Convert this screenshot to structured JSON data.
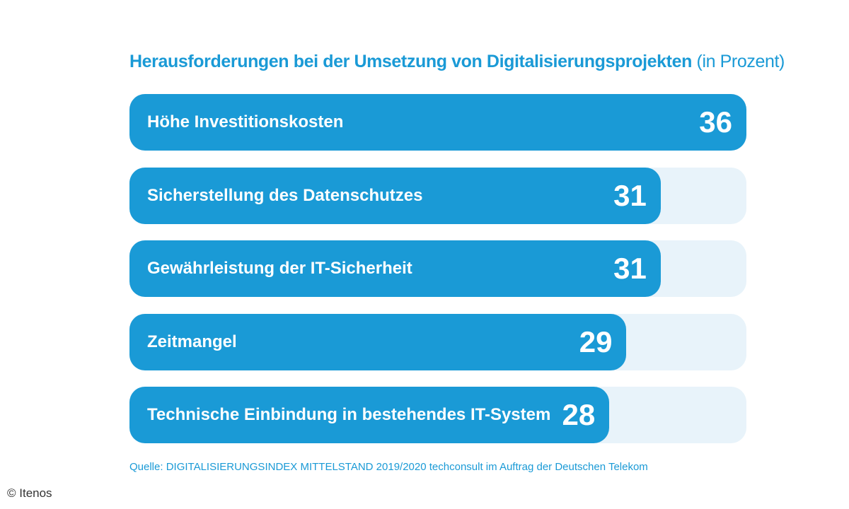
{
  "header": {
    "title": "Herausforderungen bei der Umsetzung von Digitalisierungsprojekten",
    "unit": "(in Prozent)"
  },
  "chart_data": {
    "type": "bar",
    "orientation": "horizontal",
    "title": "Herausforderungen bei der Umsetzung von Digitalisierungsprojekten (in Prozent)",
    "categories": [
      "Höhe Investitionskosten",
      "Sicherstellung des Datenschutzes",
      "Gewährleistung der IT-Sicherheit",
      "Zeitmangel",
      "Technische Einbindung in bestehendes IT-System"
    ],
    "values": [
      36,
      31,
      31,
      29,
      28
    ],
    "xlim": [
      0,
      36
    ],
    "grid": false,
    "legend": "none"
  },
  "footer": {
    "source": "Quelle: DIGITALISIERUNGSINDEX MITTELSTAND 2019/2020 techconsult im Auftrag der Deutschen Telekom",
    "copyright": "© Itenos"
  },
  "colors": {
    "bar": "#1a9ad6",
    "track": "#e8f3fa",
    "text_on_bar": "#ffffff",
    "title": "#1a9ad6"
  }
}
